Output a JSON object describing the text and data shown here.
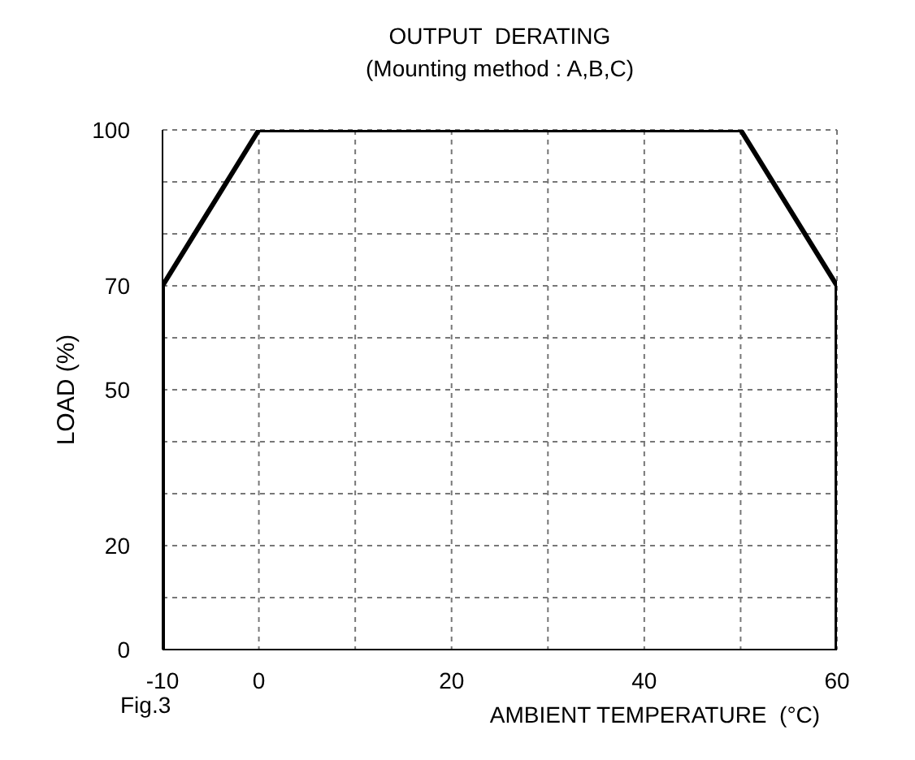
{
  "chart_data": {
    "type": "line",
    "title": "OUTPUT  DERATING",
    "subtitle": "(Mounting method : A,B,C)",
    "xlabel": "AMBIENT TEMPERATURE  (°C)",
    "ylabel": "LOAD (%)",
    "annotations": [
      "Fig.3"
    ],
    "x": [
      -10,
      -10,
      0,
      50,
      60,
      60
    ],
    "series": [
      {
        "color": "#000000",
        "values": [
          0,
          70,
          100,
          100,
          70,
          0
        ]
      }
    ],
    "xlim": [
      -10,
      60
    ],
    "xticks": [
      -10,
      0,
      {
        "value": 10,
        "label": null
      },
      20,
      {
        "value": 30,
        "label": null
      },
      40,
      {
        "value": 50,
        "label": null
      },
      60
    ],
    "ylim": [
      0,
      100
    ],
    "yticks": [
      0,
      {
        "value": 10,
        "label": null
      },
      20,
      {
        "value": 30,
        "label": null
      },
      {
        "value": 40,
        "label": null
      },
      50,
      {
        "value": 60,
        "label": null
      },
      70,
      {
        "value": 80,
        "label": null
      },
      {
        "value": 90,
        "label": null
      },
      100
    ],
    "grid": true,
    "legend": false,
    "marker": "none",
    "line_style": "solid"
  }
}
